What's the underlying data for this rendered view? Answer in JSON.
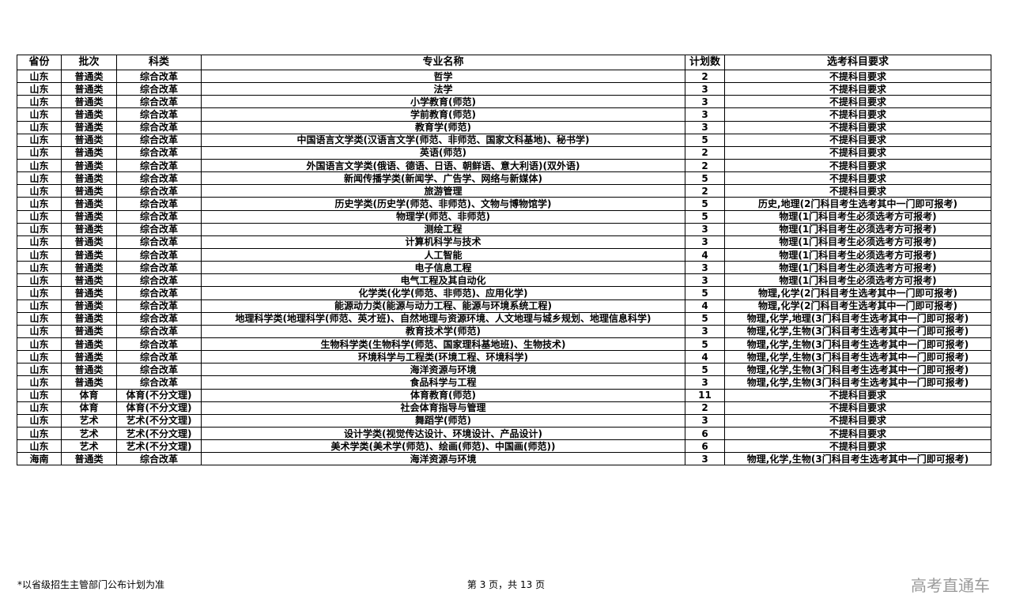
{
  "table": {
    "headers": [
      "省份",
      "批次",
      "科类",
      "专业名称",
      "计划数",
      "选考科目要求"
    ],
    "rows": [
      [
        "山东",
        "普通类",
        "综合改革",
        "哲学",
        "2",
        "不提科目要求"
      ],
      [
        "山东",
        "普通类",
        "综合改革",
        "法学",
        "3",
        "不提科目要求"
      ],
      [
        "山东",
        "普通类",
        "综合改革",
        "小学教育(师范)",
        "3",
        "不提科目要求"
      ],
      [
        "山东",
        "普通类",
        "综合改革",
        "学前教育(师范)",
        "3",
        "不提科目要求"
      ],
      [
        "山东",
        "普通类",
        "综合改革",
        "教育学(师范)",
        "3",
        "不提科目要求"
      ],
      [
        "山东",
        "普通类",
        "综合改革",
        "中国语言文学类(汉语言文学(师范、非师范、国家文科基地)、秘书学)",
        "5",
        "不提科目要求"
      ],
      [
        "山东",
        "普通类",
        "综合改革",
        "英语(师范)",
        "2",
        "不提科目要求"
      ],
      [
        "山东",
        "普通类",
        "综合改革",
        "外国语言文学类(俄语、德语、日语、朝鲜语、意大利语)(双外语)",
        "2",
        "不提科目要求"
      ],
      [
        "山东",
        "普通类",
        "综合改革",
        "新闻传播学类(新闻学、广告学、网络与新媒体)",
        "5",
        "不提科目要求"
      ],
      [
        "山东",
        "普通类",
        "综合改革",
        "旅游管理",
        "2",
        "不提科目要求"
      ],
      [
        "山东",
        "普通类",
        "综合改革",
        "历史学类(历史学(师范、非师范)、文物与博物馆学)",
        "5",
        "历史,地理(2门科目考生选考其中一门即可报考)"
      ],
      [
        "山东",
        "普通类",
        "综合改革",
        "物理学(师范、非师范)",
        "5",
        "物理(1门科目考生必须选考方可报考)"
      ],
      [
        "山东",
        "普通类",
        "综合改革",
        "测绘工程",
        "3",
        "物理(1门科目考生必须选考方可报考)"
      ],
      [
        "山东",
        "普通类",
        "综合改革",
        "计算机科学与技术",
        "3",
        "物理(1门科目考生必须选考方可报考)"
      ],
      [
        "山东",
        "普通类",
        "综合改革",
        "人工智能",
        "4",
        "物理(1门科目考生必须选考方可报考)"
      ],
      [
        "山东",
        "普通类",
        "综合改革",
        "电子信息工程",
        "3",
        "物理(1门科目考生必须选考方可报考)"
      ],
      [
        "山东",
        "普通类",
        "综合改革",
        "电气工程及其自动化",
        "3",
        "物理(1门科目考生必须选考方可报考)"
      ],
      [
        "山东",
        "普通类",
        "综合改革",
        "化学类(化学(师范、非师范)、应用化学)",
        "5",
        "物理,化学(2门科目考生选考其中一门即可报考)"
      ],
      [
        "山东",
        "普通类",
        "综合改革",
        "能源动力类(能源与动力工程、能源与环境系统工程)",
        "4",
        "物理,化学(2门科目考生选考其中一门即可报考)"
      ],
      [
        "山东",
        "普通类",
        "综合改革",
        "地理科学类(地理科学(师范、英才班)、自然地理与资源环境、人文地理与城乡规划、地理信息科学)",
        "5",
        "物理,化学,地理(3门科目考生选考其中一门即可报考)"
      ],
      [
        "山东",
        "普通类",
        "综合改革",
        "教育技术学(师范)",
        "3",
        "物理,化学,生物(3门科目考生选考其中一门即可报考)"
      ],
      [
        "山东",
        "普通类",
        "综合改革",
        "生物科学类(生物科学(师范、国家理科基地班)、生物技术)",
        "5",
        "物理,化学,生物(3门科目考生选考其中一门即可报考)"
      ],
      [
        "山东",
        "普通类",
        "综合改革",
        "环境科学与工程类(环境工程、环境科学)",
        "4",
        "物理,化学,生物(3门科目考生选考其中一门即可报考)"
      ],
      [
        "山东",
        "普通类",
        "综合改革",
        "海洋资源与环境",
        "5",
        "物理,化学,生物(3门科目考生选考其中一门即可报考)"
      ],
      [
        "山东",
        "普通类",
        "综合改革",
        "食品科学与工程",
        "3",
        "物理,化学,生物(3门科目考生选考其中一门即可报考)"
      ],
      [
        "山东",
        "体育",
        "体育(不分文理)",
        "体育教育(师范)",
        "11",
        "不提科目要求"
      ],
      [
        "山东",
        "体育",
        "体育(不分文理)",
        "社会体育指导与管理",
        "2",
        "不提科目要求"
      ],
      [
        "山东",
        "艺术",
        "艺术(不分文理)",
        "舞蹈学(师范)",
        "3",
        "不提科目要求"
      ],
      [
        "山东",
        "艺术",
        "艺术(不分文理)",
        "设计学类(视觉传达设计、环境设计、产品设计)",
        "6",
        "不提科目要求"
      ],
      [
        "山东",
        "艺术",
        "艺术(不分文理)",
        "美术学类(美术学(师范)、绘画(师范)、中国画(师范))",
        "6",
        "不提科目要求"
      ],
      [
        "海南",
        "普通类",
        "综合改革",
        "海洋资源与环境",
        "3",
        "物理,化学,生物(3门科目考生选考其中一门即可报考)"
      ]
    ]
  },
  "footer": {
    "note": "*以省级招生主管部门公布计划为准",
    "page": "第 3 页，共 13 页",
    "brand": "高考直通车"
  }
}
